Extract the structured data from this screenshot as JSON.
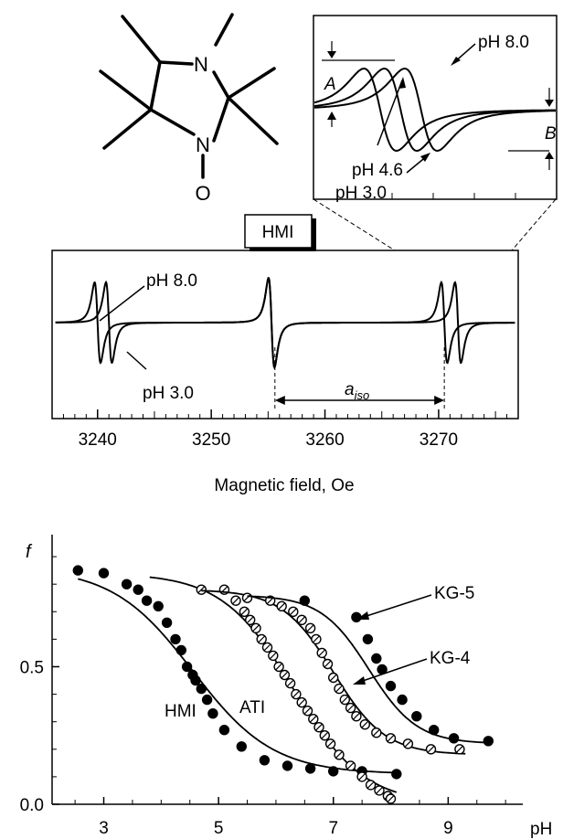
{
  "molecule": {
    "atoms": [
      "N",
      "N",
      "O"
    ]
  },
  "top_label": "HMI",
  "epr_axis": {
    "xlabel": "Magnetic field, Oe"
  },
  "epr_annotations": {
    "ph_high": "pH 8.0",
    "ph_low": "pH 3.0",
    "aiso_main": "a",
    "aiso_sub": "iso"
  },
  "inset_annotations": {
    "ph_high": "pH 8.0",
    "ph_mid": "pH 4.6",
    "ph_low": "pH 3.0",
    "amp_a": "A",
    "amp_b": "B"
  },
  "titration_axis": {
    "ylabel": "f",
    "xlabel": "pH"
  },
  "chart_data": [
    {
      "type": "line",
      "xlabel": "Magnetic field, Oe",
      "ylabel": "",
      "xlim": [
        3236,
        3277
      ],
      "x_ticks": [
        3240,
        3250,
        3260,
        3270
      ],
      "grid": false,
      "lines": [
        {
          "name": "pH 8.0",
          "centers": [
            3240.0,
            3255.3,
            3270.5
          ],
          "widths": [
            0.45,
            0.45,
            0.45
          ],
          "amps": [
            0.9,
            1.0,
            0.9
          ]
        },
        {
          "name": "pH 3.0",
          "centers": [
            3241.0,
            3255.3,
            3271.7
          ],
          "widths": [
            0.45,
            0.45,
            0.45
          ],
          "amps": [
            0.9,
            1.0,
            0.9
          ]
        }
      ],
      "baseline": 0,
      "aiso_span": [
        3255.6,
        3270.5
      ]
    },
    {
      "type": "line",
      "xlabel": "",
      "ylabel": "",
      "grid": false,
      "series": [
        {
          "name": "pH 8.0",
          "center": 0.0,
          "width": 0.9
        },
        {
          "name": "pH 4.6",
          "center": 0.65,
          "width": 0.9
        },
        {
          "name": "pH 3.0",
          "center": 1.3,
          "width": 0.9
        }
      ]
    },
    {
      "type": "scatter",
      "xlabel": "pH",
      "ylabel": "f",
      "xlim": [
        2.1,
        10.3
      ],
      "ylim": [
        0.0,
        0.98
      ],
      "x_ticks": [
        3,
        5,
        7,
        9
      ],
      "y_ticks": [
        0.0,
        0.5
      ],
      "grid": false,
      "series": [
        {
          "name": "HMI",
          "marker": "filled",
          "fit": {
            "low": 0.11,
            "high": 0.86,
            "pK": 4.55,
            "slope": 0.7,
            "x_range": [
              2.55,
              8.1
            ]
          },
          "x": [
            2.55,
            3.0,
            3.4,
            3.6,
            3.75,
            3.95,
            4.1,
            4.25,
            4.35,
            4.45,
            4.55,
            4.6,
            4.7,
            4.8,
            4.9,
            5.1,
            5.4,
            5.8,
            6.2,
            6.6,
            7.0,
            7.5,
            8.1
          ],
          "y": [
            0.85,
            0.84,
            0.8,
            0.78,
            0.74,
            0.72,
            0.66,
            0.6,
            0.56,
            0.5,
            0.47,
            0.45,
            0.42,
            0.38,
            0.33,
            0.27,
            0.21,
            0.16,
            0.14,
            0.13,
            0.12,
            0.12,
            0.11
          ]
        },
        {
          "name": "ATI",
          "marker": "open",
          "fit": {
            "low": 0.0,
            "high": 0.84,
            "pK": 6.3,
            "slope": 0.62,
            "x_range": [
              3.8,
              8.1
            ]
          },
          "x": [
            4.7,
            5.1,
            5.3,
            5.45,
            5.55,
            5.65,
            5.75,
            5.85,
            5.95,
            6.05,
            6.15,
            6.25,
            6.35,
            6.45,
            6.55,
            6.65,
            6.75,
            6.85,
            6.95,
            7.1,
            7.3,
            7.5,
            7.65,
            7.8,
            7.95,
            8.0
          ],
          "y": [
            0.78,
            0.78,
            0.74,
            0.7,
            0.67,
            0.64,
            0.6,
            0.57,
            0.54,
            0.5,
            0.47,
            0.44,
            0.4,
            0.37,
            0.34,
            0.31,
            0.28,
            0.25,
            0.22,
            0.18,
            0.14,
            0.1,
            0.07,
            0.05,
            0.03,
            0.02
          ]
        },
        {
          "name": "KG-4",
          "marker": "open",
          "fit": {
            "low": 0.18,
            "high": 0.78,
            "pK": 7.0,
            "slope": 0.45,
            "x_range": [
              4.7,
              9.3
            ]
          },
          "x": [
            5.5,
            5.9,
            6.1,
            6.3,
            6.45,
            6.6,
            6.7,
            6.8,
            6.9,
            7.0,
            7.1,
            7.2,
            7.3,
            7.4,
            7.55,
            7.75,
            8.0,
            8.3,
            8.7,
            9.2
          ],
          "y": [
            0.75,
            0.74,
            0.72,
            0.7,
            0.67,
            0.64,
            0.6,
            0.55,
            0.51,
            0.46,
            0.42,
            0.38,
            0.35,
            0.32,
            0.29,
            0.26,
            0.24,
            0.22,
            0.2,
            0.2
          ]
        },
        {
          "name": "KG-5",
          "marker": "filled",
          "fit": {
            "low": 0.22,
            "high": 0.76,
            "pK": 7.62,
            "slope": 0.42,
            "x_range": [
              5.5,
              9.7
            ]
          },
          "x": [
            6.5,
            7.4,
            7.6,
            7.75,
            7.85,
            8.0,
            8.2,
            8.45,
            8.75,
            9.1,
            9.7
          ],
          "y": [
            0.74,
            0.68,
            0.6,
            0.53,
            0.49,
            0.43,
            0.38,
            0.32,
            0.27,
            0.24,
            0.23
          ]
        }
      ],
      "annotations": [
        "HMI",
        "ATI",
        "KG-4",
        "KG-5"
      ]
    }
  ]
}
